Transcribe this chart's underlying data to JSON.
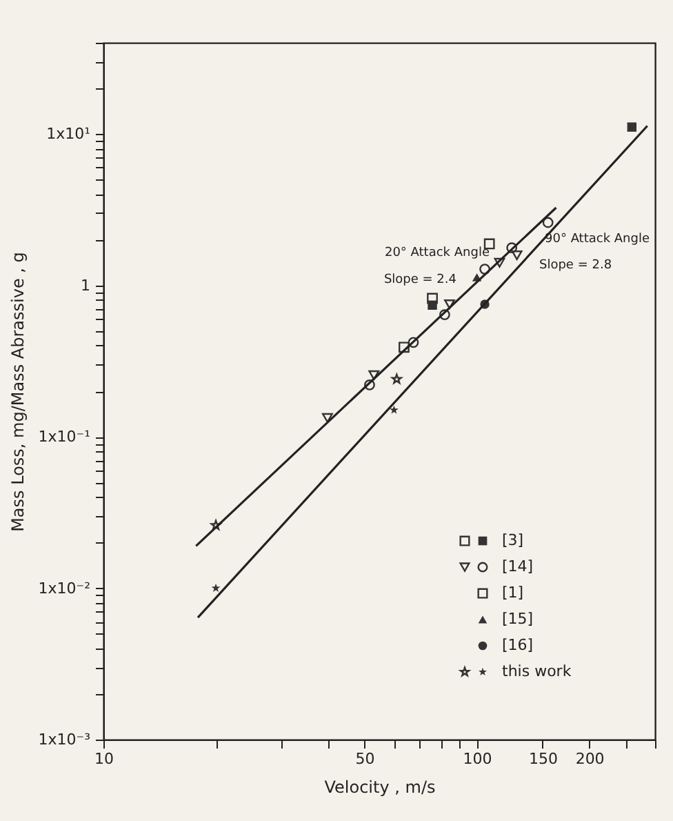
{
  "chart_data": {
    "type": "scatter",
    "xlabel": "Velocity , m/s",
    "ylabel": "Mass Loss, mg/Mass Abrassive , g",
    "log": "xy",
    "grid": false,
    "legend": "bottom right",
    "xlim": [
      10,
      300
    ],
    "ylim": [
      0.001,
      40
    ],
    "xticks": [
      10,
      {
        "value": 20,
        "label": null
      },
      {
        "value": 30,
        "label": null
      },
      {
        "value": 40,
        "label": null
      },
      50,
      {
        "value": 60,
        "label": null
      },
      {
        "value": 70,
        "label": null
      },
      {
        "value": 80,
        "label": null
      },
      {
        "value": 90,
        "label": null
      },
      100,
      150,
      200,
      {
        "value": 250,
        "label": null
      },
      {
        "value": 300,
        "label": null
      }
    ],
    "yticks": [
      {
        "value": 0.001,
        "label": "1x10⁻³"
      },
      {
        "value": 0.002,
        "label": null
      },
      {
        "value": 0.003,
        "label": null
      },
      {
        "value": 0.004,
        "label": null
      },
      {
        "value": 0.005,
        "label": null
      },
      {
        "value": 0.006,
        "label": null
      },
      {
        "value": 0.007,
        "label": null
      },
      {
        "value": 0.008,
        "label": null
      },
      {
        "value": 0.009,
        "label": null
      },
      {
        "value": 0.01,
        "label": "1x10⁻²"
      },
      {
        "value": 0.02,
        "label": null
      },
      {
        "value": 0.03,
        "label": null
      },
      {
        "value": 0.04,
        "label": null
      },
      {
        "value": 0.05,
        "label": null
      },
      {
        "value": 0.06,
        "label": null
      },
      {
        "value": 0.07,
        "label": null
      },
      {
        "value": 0.08,
        "label": null
      },
      {
        "value": 0.09,
        "label": null
      },
      {
        "value": 0.1,
        "label": "1x10⁻¹"
      },
      {
        "value": 0.2,
        "label": null
      },
      {
        "value": 0.3,
        "label": null
      },
      {
        "value": 0.4,
        "label": null
      },
      {
        "value": 0.5,
        "label": null
      },
      {
        "value": 0.6,
        "label": null
      },
      {
        "value": 0.7,
        "label": null
      },
      {
        "value": 0.8,
        "label": null
      },
      {
        "value": 0.9,
        "label": null
      },
      1,
      {
        "value": 2,
        "label": null
      },
      {
        "value": 3,
        "label": null
      },
      {
        "value": 4,
        "label": null
      },
      {
        "value": 5,
        "label": null
      },
      {
        "value": 6,
        "label": null
      },
      {
        "value": 7,
        "label": null
      },
      {
        "value": 8,
        "label": null
      },
      {
        "value": 9,
        "label": null
      },
      {
        "value": 10,
        "label": "1x10¹"
      },
      {
        "value": 20,
        "label": null
      },
      {
        "value": 30,
        "label": null
      },
      {
        "value": 40,
        "label": null
      }
    ],
    "annotations": [
      "20° Attack Angle",
      "Slope = 2.4",
      "90° Attack Angle",
      "Slope = 2.8"
    ],
    "series": [
      {
        "name": "[3]",
        "color": "#333333",
        "marker": "square",
        "x": [
          76,
          260
        ],
        "values": [
          0.74,
          11.1
        ]
      },
      {
        "color": "#333333",
        "marker": "square",
        "x": [
          76,
          108
        ],
        "values": [
          0.82,
          1.88
        ]
      },
      {
        "name": "[14]",
        "color": "#333333",
        "marker": "circle",
        "x": [
          51.6,
          67.6,
          82,
          105,
          124,
          155
        ],
        "values": [
          0.22,
          0.42,
          0.64,
          1.28,
          1.77,
          2.6
        ]
      },
      {
        "color": "#333333",
        "marker": "triangle-down",
        "x": [
          39.8,
          53,
          84.5,
          115,
          128
        ],
        "values": [
          0.133,
          0.255,
          0.75,
          1.41,
          1.58
        ]
      },
      {
        "name": "[1]",
        "color": "#333333",
        "marker": "square",
        "x": [
          63.8
        ],
        "values": [
          0.39
        ]
      },
      {
        "name": "[15]",
        "color": "#333333",
        "marker": "triangle",
        "x": [
          100
        ],
        "values": [
          1.13
        ]
      },
      {
        "name": "[16]",
        "color": "#333333",
        "marker": "circle",
        "x": [
          105
        ],
        "values": [
          0.75
        ]
      },
      {
        "name": "this work",
        "color": "#333333",
        "marker": "star",
        "x": [
          20,
          60
        ],
        "values": [
          0.01,
          0.15
        ]
      },
      {
        "color": "#333333",
        "marker": "star",
        "x": [
          20,
          61
        ],
        "values": [
          0.026,
          0.24
        ]
      },
      {
        "type": "line",
        "color": "#222222",
        "x": [
          17.7,
          163
        ],
        "values": [
          0.019,
          3.26
        ]
      },
      {
        "type": "line",
        "color": "#222222",
        "x": [
          17.9,
          286
        ],
        "values": [
          0.0064,
          11.3
        ]
      }
    ]
  }
}
